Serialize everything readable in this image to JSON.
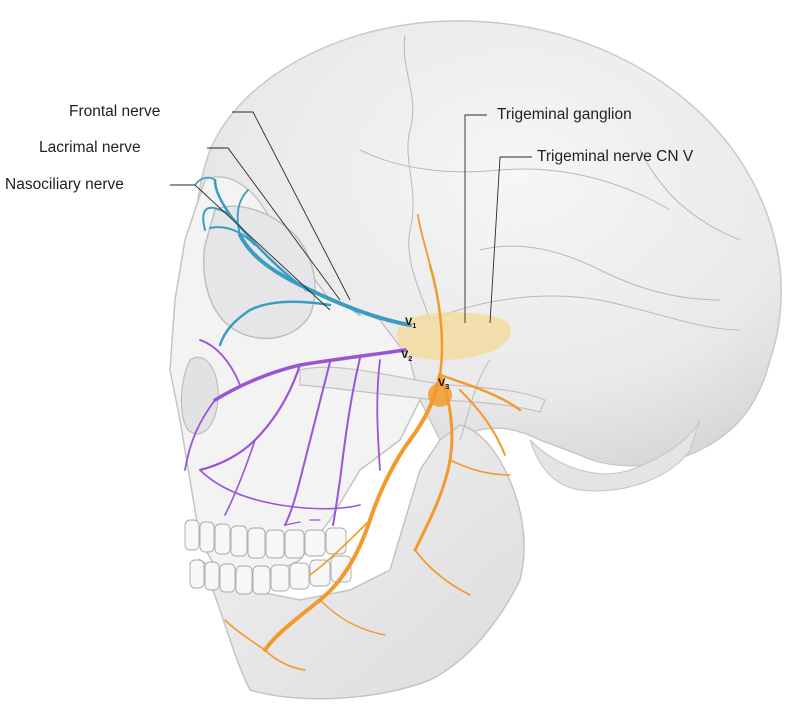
{
  "labels": {
    "frontal": "Frontal nerve",
    "lacrimal": "Lacrimal nerve",
    "nasociliary": "Nasociliary nerve",
    "ganglion": "Trigeminal ganglion",
    "cn_v": "Trigeminal nerve CN V"
  },
  "branches": {
    "v1_letter": "V",
    "v1_sub": "1",
    "v2_letter": "V",
    "v2_sub": "2",
    "v3_letter": "V",
    "v3_sub": "3"
  },
  "colors": {
    "skull_fill": "#ececed",
    "suture": "#b9b9bb",
    "ophthalmic_v1": "#3a9cc0",
    "maxillary_v2": "#9a55d6",
    "mandibular_v3": "#f29a2e",
    "ganglion": "#f3dca0",
    "leader_line": "#2a2a2a"
  }
}
